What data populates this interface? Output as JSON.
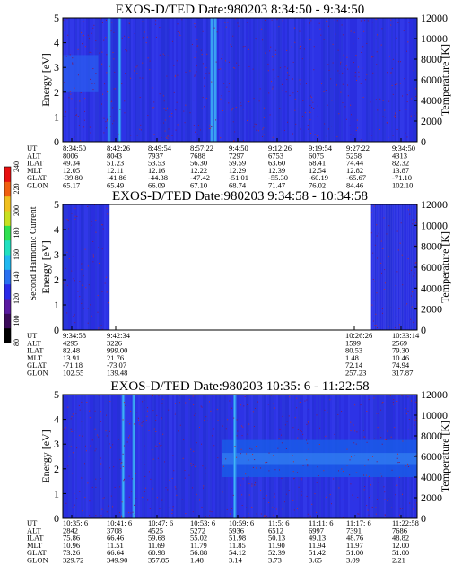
{
  "figure": {
    "colorbar": {
      "label": "Second Harmonic Current",
      "ticks": [
        "240",
        "220",
        "200",
        "180",
        "160",
        "140",
        "120",
        "100",
        "80"
      ]
    },
    "panels": [
      {
        "title": "EXOS-D/TED   Date:980203  8:34:50 - 9:34:50",
        "ylabel_left": "Energy [eV]",
        "ylabel_right": "Temperature [K]",
        "yticks_left": [
          "0",
          "1",
          "2",
          "3",
          "4",
          "5"
        ],
        "yticks_right": [
          "0",
          "2000",
          "4000",
          "6000",
          "8000",
          "10000",
          "12000"
        ],
        "row_labels": [
          "UT",
          "ALT",
          "ILAT",
          "MLT",
          "GLAT",
          "GLON"
        ],
        "columns": [
          [
            "8:34:50",
            "8006",
            "49.34",
            "12.05",
            "-39.80",
            "65.17"
          ],
          [
            "8:42:26",
            "8043",
            "51.23",
            "12.11",
            "-41.86",
            "65.49"
          ],
          [
            "8:49:54",
            "7937",
            "53.53",
            "12.16",
            "-44.38",
            "66.09"
          ],
          [
            "8:57:22",
            "7688",
            "56.30",
            "12.22",
            "-47.42",
            "67.10"
          ],
          [
            "9:4:50",
            "7297",
            "59.59",
            "12.29",
            "-51.01",
            "68.74"
          ],
          [
            "9:12:26",
            "6753",
            "63.60",
            "12.39",
            "-55.30",
            "71.47"
          ],
          [
            "9:19:54",
            "6075",
            "68.41",
            "12.54",
            "-60.19",
            "76.02"
          ],
          [
            "9:27:22",
            "5258",
            "74.44",
            "12.82",
            "-65.67",
            "84.46"
          ],
          [
            "9:34:50",
            "4313",
            "82.32",
            "13.87",
            "-71.10",
            "102.10"
          ]
        ]
      },
      {
        "title": "EXOS-D/TED   Date:980203  9:34:58 - 10:34:58",
        "ylabel_left": "Energy [eV]",
        "ylabel_right": "Temperature [K]",
        "yticks_left": [
          "0",
          "1",
          "2",
          "3",
          "4",
          "5"
        ],
        "yticks_right": [
          "0",
          "2000",
          "4000",
          "6000",
          "8000",
          "10000",
          "12000"
        ],
        "row_labels": [
          "UT",
          "ALT",
          "ILAT",
          "MLT",
          "GLAT",
          "GLON"
        ],
        "columns": [
          [
            "9:34:58",
            "4295",
            "82.48",
            "13.91",
            "-71.18",
            "102.55"
          ],
          [
            "9:42:34",
            "3226",
            "999.00",
            "21.76",
            "-73.07",
            "139.48"
          ],
          [
            "10:26:26",
            "1599",
            "80.53",
            "1.48",
            "72.14",
            "257.23"
          ],
          [
            "10:33:14",
            "2569",
            "79.30",
            "10.46",
            "74.94",
            "317.87"
          ]
        ]
      },
      {
        "title": "EXOS-D/TED   Date:980203  10:35: 6 - 11:22:58",
        "ylabel_left": "Energy [eV]",
        "ylabel_right": "Temperature [K]",
        "yticks_left": [
          "0",
          "1",
          "2",
          "3",
          "4",
          "5"
        ],
        "yticks_right": [
          "0",
          "2000",
          "4000",
          "6000",
          "8000",
          "10000",
          "12000"
        ],
        "row_labels": [
          "UT",
          "ALT",
          "ILAT",
          "MLT",
          "GLAT",
          "GLON"
        ],
        "columns": [
          [
            "10:35: 6",
            "2842",
            "75.86",
            "10.96",
            "73.26",
            "329.72"
          ],
          [
            "10:41: 6",
            "3708",
            "66.46",
            "11.51",
            "66.64",
            "349.90"
          ],
          [
            "10:47: 6",
            "4525",
            "59.68",
            "11.69",
            "60.98",
            "357.85"
          ],
          [
            "10:53: 6",
            "5272",
            "55.02",
            "11.79",
            "56.88",
            "1.48"
          ],
          [
            "10:59: 6",
            "5936",
            "51.98",
            "11.85",
            "54.12",
            "3.14"
          ],
          [
            "11:5: 6",
            "6512",
            "50.13",
            "11.90",
            "52.39",
            "3.73"
          ],
          [
            "11:11: 6",
            "6997",
            "49.13",
            "11.94",
            "51.42",
            "3.65"
          ],
          [
            "11:17: 6",
            "7391",
            "48.76",
            "11.97",
            "51.00",
            "3.09"
          ],
          [
            "11:22:58",
            "7686",
            "48.82",
            "12.00",
            "51.00",
            "2.21"
          ]
        ]
      }
    ]
  },
  "chart_data": [
    {
      "type": "heatmap",
      "title": "EXOS-D/TED   Date:980203  8:34:50 - 9:34:50",
      "xlabel": "",
      "ylabel": "Energy [eV]",
      "ylabel_right": "Temperature [K]",
      "xlim": [
        "8:34:50",
        "9:34:50"
      ],
      "ylim": [
        0,
        5
      ],
      "ylim_right": [
        0,
        12000
      ],
      "colorbar_range": [
        80,
        240
      ],
      "x_ticks": [
        "8:34:50",
        "8:42:26",
        "8:49:54",
        "8:57:22",
        "9:4:50",
        "9:12:26",
        "9:19:54",
        "9:27:22",
        "9:34:50"
      ],
      "data_coverage": [
        [
          0.0,
          1.0
        ]
      ],
      "bright_columns": [
        0.13,
        0.16,
        0.42,
        0.43
      ],
      "low_energy_band": [
        2.0,
        3.5
      ]
    },
    {
      "type": "heatmap",
      "title": "EXOS-D/TED   Date:980203  9:34:58 - 10:34:58",
      "xlabel": "",
      "ylabel": "Energy [eV]",
      "ylabel_right": "Temperature [K]",
      "xlim": [
        "9:34:58",
        "10:34:58"
      ],
      "ylim": [
        0,
        5
      ],
      "ylim_right": [
        0,
        12000
      ],
      "colorbar_range": [
        80,
        240
      ],
      "x_ticks": [
        "9:34:58",
        "9:42:34",
        "10:26:26",
        "10:33:14"
      ],
      "data_coverage": [
        [
          0.0,
          0.13
        ],
        [
          0.87,
          1.0
        ]
      ]
    },
    {
      "type": "heatmap",
      "title": "EXOS-D/TED   Date:980203  10:35: 6 - 11:22:58",
      "xlabel": "",
      "ylabel": "Energy [eV]",
      "ylabel_right": "Temperature [K]",
      "xlim": [
        "10:35: 6",
        "11:22:58"
      ],
      "ylim": [
        0,
        5
      ],
      "ylim_right": [
        0,
        12000
      ],
      "colorbar_range": [
        80,
        240
      ],
      "x_ticks": [
        "10:35: 6",
        "10:41: 6",
        "10:47: 6",
        "10:53: 6",
        "10:59: 6",
        "11:5: 6",
        "11:11: 6",
        "11:17: 6",
        "11:22:58"
      ],
      "data_coverage": [
        [
          0.0,
          1.0
        ]
      ],
      "bright_columns": [
        0.17,
        0.2,
        0.485
      ],
      "temperature_band_K": [
        4000,
        7600
      ]
    }
  ]
}
